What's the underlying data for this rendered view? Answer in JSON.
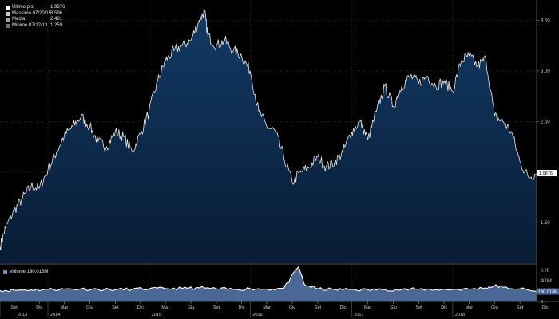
{
  "legend": {
    "items": [
      {
        "name": "Ultimo prz",
        "value": "1.9876",
        "color": "#ffffff"
      },
      {
        "name": "Massimo 07/20/15",
        "value": "3.596",
        "color": "#cfcfcf"
      },
      {
        "name": "Media",
        "value": "2.481",
        "color": "#a0a0a0"
      },
      {
        "name": "Minimo 07/12/13",
        "value": "1.259",
        "color": "#707070"
      }
    ],
    "volume_label": "Volume",
    "volume_value": "190.013M"
  },
  "colors": {
    "background": "#000000",
    "price_fill_top": "#123a66",
    "price_fill_bottom": "#081c33",
    "price_line": "#e8e8e8",
    "volume_fill": "#4a6796",
    "volume_line": "#ffffff",
    "grid": "#3a3a3a"
  },
  "chart_data": [
    {
      "type": "area",
      "name": "price",
      "ylim": [
        1.1,
        3.7
      ],
      "y_ticks": [
        1.5,
        2.0,
        2.5,
        3.0,
        3.5
      ],
      "y_tick_labels": [
        "1.50",
        "2.00",
        "2.50",
        "3.00",
        "3.50"
      ],
      "last_price_label": "1.9876",
      "grid": true,
      "x_range": [
        "2013-07-12",
        "2018-10-31"
      ],
      "x_ticks": [
        "2013-09-01",
        "2013-12-01",
        "2014-03-01",
        "2014-06-01",
        "2014-09-01",
        "2014-12-01",
        "2015-03-01",
        "2015-06-01",
        "2015-09-01",
        "2015-12-01",
        "2016-03-01",
        "2016-06-01",
        "2016-09-01",
        "2016-12-01",
        "2017-03-01",
        "2017-06-01",
        "2017-09-01",
        "2017-12-01",
        "2018-03-01",
        "2018-06-01",
        "2018-09-01",
        "2018-12-01"
      ],
      "x_tick_labels": [
        "Set",
        "Dic",
        "Mar",
        "Giu",
        "Set",
        "Dic",
        "Mar",
        "Giu",
        "Set",
        "Dic",
        "Mar",
        "Giu",
        "Set",
        "Dic",
        "Mar",
        "Giu",
        "Set",
        "Dic",
        "Mar",
        "Giu",
        "Set",
        "Dic"
      ],
      "year_ticks": [
        "2013-07-12",
        "2014-01-01",
        "2015-01-01",
        "2016-01-01",
        "2017-01-01",
        "2018-01-01"
      ],
      "year_labels": [
        "2013",
        "2014",
        "2015",
        "2016",
        "2017",
        "2018"
      ],
      "x": [
        "2013-07-12",
        "2013-08-01",
        "2013-09-01",
        "2013-10-01",
        "2013-11-01",
        "2013-12-01",
        "2014-01-01",
        "2014-02-01",
        "2014-03-01",
        "2014-04-01",
        "2014-05-01",
        "2014-06-01",
        "2014-07-01",
        "2014-08-01",
        "2014-09-01",
        "2014-10-01",
        "2014-11-01",
        "2014-12-01",
        "2015-01-01",
        "2015-02-01",
        "2015-03-01",
        "2015-04-01",
        "2015-05-01",
        "2015-06-01",
        "2015-07-01",
        "2015-07-20",
        "2015-08-01",
        "2015-09-01",
        "2015-10-01",
        "2015-11-01",
        "2015-12-01",
        "2016-01-01",
        "2016-02-01",
        "2016-03-01",
        "2016-04-01",
        "2016-05-01",
        "2016-06-01",
        "2016-07-01",
        "2016-08-01",
        "2016-09-01",
        "2016-10-01",
        "2016-11-01",
        "2016-12-01",
        "2017-01-01",
        "2017-02-01",
        "2017-03-01",
        "2017-04-01",
        "2017-05-01",
        "2017-06-01",
        "2017-07-01",
        "2017-08-01",
        "2017-09-01",
        "2017-10-01",
        "2017-11-01",
        "2017-12-01",
        "2018-01-01",
        "2018-02-01",
        "2018-03-01",
        "2018-04-01",
        "2018-05-01",
        "2018-06-01",
        "2018-07-01",
        "2018-08-01",
        "2018-09-01",
        "2018-10-01",
        "2018-10-31"
      ],
      "values": [
        1.26,
        1.45,
        1.62,
        1.74,
        1.86,
        1.84,
        2.02,
        2.2,
        2.36,
        2.45,
        2.55,
        2.45,
        2.3,
        2.25,
        2.4,
        2.35,
        2.2,
        2.38,
        2.6,
        2.9,
        3.1,
        3.2,
        3.25,
        3.3,
        3.5,
        3.59,
        3.35,
        3.25,
        3.3,
        3.2,
        3.15,
        3.0,
        2.6,
        2.45,
        2.4,
        2.15,
        1.9,
        2.0,
        2.05,
        2.15,
        2.05,
        2.1,
        2.2,
        2.4,
        2.5,
        2.32,
        2.6,
        2.85,
        2.65,
        2.85,
        2.95,
        2.88,
        2.95,
        2.85,
        2.9,
        2.8,
        3.1,
        3.15,
        3.05,
        3.12,
        2.55,
        2.5,
        2.4,
        2.1,
        1.95,
        1.99
      ]
    },
    {
      "type": "area",
      "name": "Volume",
      "ylim": [
        0,
        700
      ],
      "y_ticks": [
        0,
        200,
        400,
        600
      ],
      "y_tick_labels": [
        "0",
        "",
        "400M",
        "0.6B"
      ],
      "last_value_label": "190.013M",
      "x": [
        "2013-07-12",
        "2013-09-01",
        "2013-11-01",
        "2014-01-01",
        "2014-03-01",
        "2014-05-01",
        "2014-07-01",
        "2014-09-01",
        "2014-11-01",
        "2015-01-01",
        "2015-03-01",
        "2015-05-01",
        "2015-07-01",
        "2015-09-01",
        "2015-11-01",
        "2016-01-01",
        "2016-03-01",
        "2016-05-01",
        "2016-06-24",
        "2016-07-15",
        "2016-09-01",
        "2016-11-01",
        "2017-01-01",
        "2017-03-01",
        "2017-05-01",
        "2017-07-01",
        "2017-09-01",
        "2017-11-01",
        "2018-01-01",
        "2018-03-01",
        "2018-05-01",
        "2018-06-01",
        "2018-07-01",
        "2018-09-01",
        "2018-10-31"
      ],
      "values": [
        210,
        215,
        220,
        230,
        235,
        240,
        230,
        225,
        235,
        240,
        245,
        250,
        260,
        240,
        230,
        245,
        235,
        250,
        660,
        320,
        240,
        225,
        230,
        220,
        230,
        225,
        235,
        225,
        230,
        235,
        260,
        300,
        270,
        240,
        190
      ]
    }
  ]
}
